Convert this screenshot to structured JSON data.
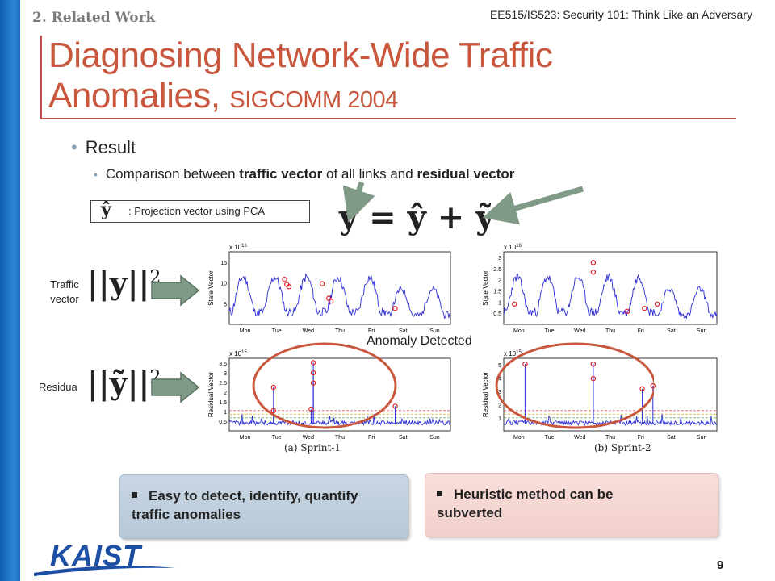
{
  "header": {
    "section": "2. Related Work",
    "course": "EE515/IS523: Security 101: Think Like an Adversary"
  },
  "title": {
    "main": "Diagnosing Network-Wide Traffic Anomalies, ",
    "venue": "SIGCOMM 2004"
  },
  "bullets": {
    "level1": "Result",
    "level2_prefix": "Comparison between ",
    "level2_bold1": "traffic vector",
    "level2_mid": " of all links and ",
    "level2_bold2": "residual vector"
  },
  "projection": {
    "symbol": "ŷ",
    "text": ": Projection vector using PCA"
  },
  "equation": "y = ŷ + ỹ",
  "labels": {
    "traffic": "Traffic vector",
    "residual": "Residua",
    "anomaly": "Anomaly Detected"
  },
  "norms": {
    "traffic": "||y||",
    "residual": "||ỹ||",
    "power": "2"
  },
  "plots": {
    "days": [
      "Mon",
      "Tue",
      "Wed",
      "Thu",
      "Fri",
      "Sat",
      "Sun"
    ],
    "top_left": {
      "ylabel": "State Vector",
      "exp": "x 10",
      "exp_power": "16",
      "yticks": [
        "5",
        "10",
        "15"
      ]
    },
    "top_right": {
      "ylabel": "State Vector",
      "exp": "x 10",
      "exp_power": "16",
      "yticks": [
        "0.5",
        "1",
        "1.5",
        "2",
        "2.5",
        "3"
      ]
    },
    "bottom_left": {
      "ylabel": "Residual Vector",
      "exp": "x 10",
      "exp_power": "15",
      "yticks": [
        "0.5",
        "1",
        "1.5",
        "2",
        "2.5",
        "3",
        "3.5"
      ],
      "caption": "(a) Sprint-1"
    },
    "bottom_right": {
      "ylabel": "Residual Vector",
      "exp": "x 10",
      "exp_power": "15",
      "yticks": [
        "1",
        "2",
        "3",
        "4",
        "5"
      ],
      "caption": "(b) Sprint-2"
    }
  },
  "panels": {
    "left": "Easy to detect, identify, quantify traffic anomalies",
    "right": "Heuristic method can be subverted"
  },
  "footer": {
    "logo": "KAIST",
    "page": "9"
  },
  "colors": {
    "title": "#c9573d",
    "accent_bar": "#1f78c8",
    "plot_line": "#2b2bd6",
    "marker": "#e0202a",
    "ellipse": "#c9573d"
  }
}
